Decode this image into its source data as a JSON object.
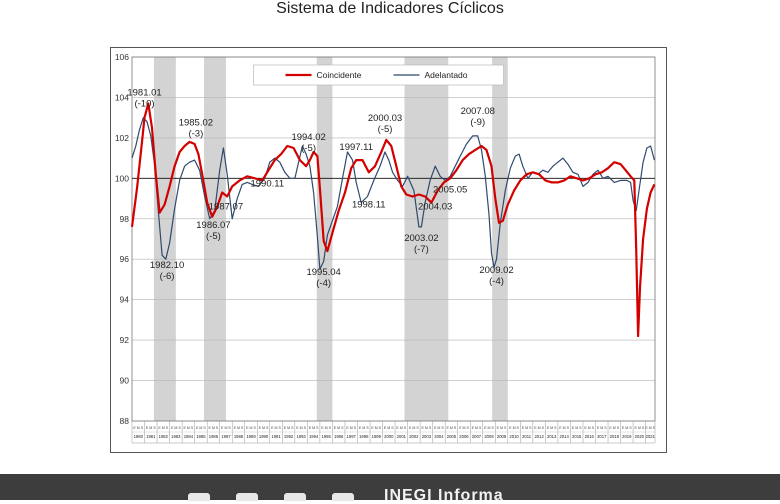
{
  "page": {
    "title": "Sistema de Indicadores Cíclicos"
  },
  "colors": {
    "coincidente": "#d40000",
    "adelantado": "#2f4a6e",
    "shade": "#d3d3d3",
    "footer": "#3d3d3d"
  },
  "footer": {
    "icons": [
      "facebook-icon",
      "instagram-icon",
      "twitter-icon",
      "youtube-icon"
    ],
    "brand": "INEGI Informa"
  },
  "chart_data": {
    "type": "line",
    "title": "",
    "xlabel": "",
    "ylabel": "",
    "ylim": [
      88,
      106
    ],
    "y_ticks": [
      88,
      90,
      92,
      94,
      96,
      98,
      100,
      102,
      104,
      106
    ],
    "reference_line": 100,
    "x_range": [
      1980.0,
      2021.75
    ],
    "year_labels": [
      "1980",
      "1981",
      "1982",
      "1983",
      "1984",
      "1985",
      "1986",
      "1987",
      "1988",
      "1989",
      "1990",
      "1991",
      "1992",
      "1993",
      "1994",
      "1995",
      "1996",
      "1997",
      "1998",
      "1999",
      "2000",
      "2001",
      "2002",
      "2003",
      "2004",
      "2005",
      "2006",
      "2007",
      "2008",
      "2009",
      "2010",
      "2011",
      "2012",
      "2013",
      "2014",
      "2015",
      "2016",
      "2017",
      "2018",
      "2019",
      "2020",
      "2021"
    ],
    "month_labels": "E M S",
    "grid": true,
    "legend": {
      "placement": "top-center",
      "entries": [
        "Coincidente",
        "Adelantado"
      ]
    },
    "recession_shading": [
      [
        1981.75,
        1983.5
      ],
      [
        1985.75,
        1987.5
      ],
      [
        1994.75,
        1996.0
      ],
      [
        2001.75,
        2005.25
      ],
      [
        2008.75,
        2010.0
      ]
    ],
    "series": [
      {
        "name": "Coincidente",
        "points": [
          [
            1980.0,
            97.6
          ],
          [
            1980.4,
            99.5
          ],
          [
            1980.8,
            101.8
          ],
          [
            1981.0,
            103.0
          ],
          [
            1981.3,
            103.7
          ],
          [
            1981.6,
            102.5
          ],
          [
            1981.9,
            100.2
          ],
          [
            1982.2,
            98.3
          ],
          [
            1982.6,
            98.7
          ],
          [
            1983.0,
            99.6
          ],
          [
            1983.4,
            100.6
          ],
          [
            1983.8,
            101.3
          ],
          [
            1984.2,
            101.6
          ],
          [
            1984.6,
            101.8
          ],
          [
            1985.0,
            101.7
          ],
          [
            1985.3,
            101.2
          ],
          [
            1985.6,
            100.2
          ],
          [
            1986.0,
            98.8
          ],
          [
            1986.4,
            98.1
          ],
          [
            1986.8,
            98.6
          ],
          [
            1987.2,
            99.3
          ],
          [
            1987.6,
            99.1
          ],
          [
            1988.0,
            99.6
          ],
          [
            1988.6,
            99.9
          ],
          [
            1989.2,
            100.1
          ],
          [
            1989.8,
            100.0
          ],
          [
            1990.4,
            99.9
          ],
          [
            1990.9,
            100.4
          ],
          [
            1991.4,
            100.9
          ],
          [
            1991.9,
            101.2
          ],
          [
            1992.4,
            101.6
          ],
          [
            1992.9,
            101.5
          ],
          [
            1993.4,
            100.9
          ],
          [
            1993.9,
            100.6
          ],
          [
            1994.2,
            100.9
          ],
          [
            1994.5,
            101.3
          ],
          [
            1994.8,
            101.1
          ],
          [
            1995.0,
            99.5
          ],
          [
            1995.3,
            96.9
          ],
          [
            1995.6,
            96.4
          ],
          [
            1996.0,
            97.3
          ],
          [
            1996.5,
            98.4
          ],
          [
            1997.0,
            99.3
          ],
          [
            1997.5,
            100.5
          ],
          [
            1997.9,
            100.9
          ],
          [
            1998.4,
            100.9
          ],
          [
            1998.9,
            100.3
          ],
          [
            1999.4,
            100.6
          ],
          [
            1999.9,
            101.3
          ],
          [
            2000.3,
            101.9
          ],
          [
            2000.7,
            101.6
          ],
          [
            2001.1,
            100.6
          ],
          [
            2001.5,
            99.6
          ],
          [
            2001.9,
            99.2
          ],
          [
            2002.4,
            99.1
          ],
          [
            2002.9,
            99.2
          ],
          [
            2003.4,
            99.1
          ],
          [
            2003.9,
            98.8
          ],
          [
            2004.4,
            99.4
          ],
          [
            2004.9,
            99.8
          ],
          [
            2005.4,
            100.0
          ],
          [
            2005.9,
            100.4
          ],
          [
            2006.4,
            100.9
          ],
          [
            2006.9,
            101.2
          ],
          [
            2007.4,
            101.4
          ],
          [
            2007.9,
            101.6
          ],
          [
            2008.3,
            101.4
          ],
          [
            2008.7,
            100.6
          ],
          [
            2009.0,
            99.0
          ],
          [
            2009.3,
            97.8
          ],
          [
            2009.6,
            97.9
          ],
          [
            2010.0,
            98.7
          ],
          [
            2010.5,
            99.4
          ],
          [
            2011.0,
            99.9
          ],
          [
            2011.5,
            100.2
          ],
          [
            2012.0,
            100.3
          ],
          [
            2012.5,
            100.2
          ],
          [
            2013.0,
            99.9
          ],
          [
            2013.5,
            99.8
          ],
          [
            2014.0,
            99.8
          ],
          [
            2014.5,
            99.9
          ],
          [
            2015.0,
            100.1
          ],
          [
            2015.5,
            100.0
          ],
          [
            2016.0,
            99.9
          ],
          [
            2016.5,
            100.0
          ],
          [
            2017.0,
            100.2
          ],
          [
            2017.5,
            100.3
          ],
          [
            2018.0,
            100.5
          ],
          [
            2018.5,
            100.8
          ],
          [
            2019.0,
            100.7
          ],
          [
            2019.4,
            100.4
          ],
          [
            2019.8,
            100.1
          ],
          [
            2020.1,
            99.9
          ],
          [
            2020.25,
            96.5
          ],
          [
            2020.4,
            92.2
          ],
          [
            2020.55,
            94.6
          ],
          [
            2020.8,
            97.0
          ],
          [
            2021.1,
            98.5
          ],
          [
            2021.4,
            99.3
          ],
          [
            2021.7,
            99.7
          ]
        ]
      },
      {
        "name": "Adelantado",
        "points": [
          [
            1980.0,
            101.0
          ],
          [
            1980.3,
            101.6
          ],
          [
            1980.6,
            102.4
          ],
          [
            1980.9,
            103.0
          ],
          [
            1981.2,
            102.8
          ],
          [
            1981.5,
            102.1
          ],
          [
            1981.8,
            100.7
          ],
          [
            1982.1,
            98.4
          ],
          [
            1982.4,
            96.2
          ],
          [
            1982.7,
            96.0
          ],
          [
            1983.0,
            96.8
          ],
          [
            1983.4,
            98.5
          ],
          [
            1983.8,
            99.9
          ],
          [
            1984.2,
            100.6
          ],
          [
            1984.6,
            100.8
          ],
          [
            1985.0,
            100.9
          ],
          [
            1985.4,
            100.4
          ],
          [
            1985.8,
            99.1
          ],
          [
            1986.2,
            98.0
          ],
          [
            1986.6,
            98.4
          ],
          [
            1987.0,
            100.4
          ],
          [
            1987.3,
            101.5
          ],
          [
            1987.6,
            100.2
          ],
          [
            1988.0,
            98.0
          ],
          [
            1988.4,
            99.0
          ],
          [
            1988.8,
            99.7
          ],
          [
            1989.2,
            99.8
          ],
          [
            1989.6,
            99.7
          ],
          [
            1990.1,
            99.6
          ],
          [
            1990.6,
            100.0
          ],
          [
            1991.0,
            100.8
          ],
          [
            1991.4,
            101.0
          ],
          [
            1991.8,
            100.8
          ],
          [
            1992.2,
            100.3
          ],
          [
            1992.6,
            100.0
          ],
          [
            1993.0,
            100.0
          ],
          [
            1993.3,
            100.8
          ],
          [
            1993.6,
            101.6
          ],
          [
            1993.9,
            101.2
          ],
          [
            1994.2,
            100.6
          ],
          [
            1994.5,
            99.3
          ],
          [
            1994.8,
            97.1
          ],
          [
            1995.0,
            95.5
          ],
          [
            1995.3,
            95.9
          ],
          [
            1995.6,
            97.2
          ],
          [
            1996.0,
            97.9
          ],
          [
            1996.4,
            98.6
          ],
          [
            1996.8,
            100.0
          ],
          [
            1997.2,
            101.3
          ],
          [
            1997.6,
            100.9
          ],
          [
            1997.9,
            99.8
          ],
          [
            1998.3,
            98.8
          ],
          [
            1998.8,
            99.1
          ],
          [
            1999.3,
            99.9
          ],
          [
            1999.8,
            100.6
          ],
          [
            2000.2,
            101.3
          ],
          [
            2000.5,
            100.9
          ],
          [
            2000.8,
            100.3
          ],
          [
            2001.2,
            99.9
          ],
          [
            2001.6,
            99.6
          ],
          [
            2002.0,
            100.1
          ],
          [
            2002.5,
            99.4
          ],
          [
            2002.9,
            97.6
          ],
          [
            2003.1,
            97.6
          ],
          [
            2003.4,
            98.8
          ],
          [
            2003.8,
            99.9
          ],
          [
            2004.2,
            100.6
          ],
          [
            2004.6,
            100.1
          ],
          [
            2005.0,
            99.9
          ],
          [
            2005.4,
            100.1
          ],
          [
            2005.8,
            100.6
          ],
          [
            2006.2,
            101.1
          ],
          [
            2006.7,
            101.7
          ],
          [
            2007.2,
            102.1
          ],
          [
            2007.6,
            102.1
          ],
          [
            2007.9,
            101.4
          ],
          [
            2008.2,
            100.1
          ],
          [
            2008.5,
            98.2
          ],
          [
            2008.7,
            96.3
          ],
          [
            2008.9,
            95.6
          ],
          [
            2009.1,
            96.0
          ],
          [
            2009.4,
            97.8
          ],
          [
            2009.8,
            99.4
          ],
          [
            2010.2,
            100.5
          ],
          [
            2010.6,
            101.1
          ],
          [
            2010.9,
            101.2
          ],
          [
            2011.2,
            100.6
          ],
          [
            2011.6,
            100.0
          ],
          [
            2012.0,
            100.3
          ],
          [
            2012.4,
            100.2
          ],
          [
            2012.8,
            100.4
          ],
          [
            2013.2,
            100.3
          ],
          [
            2013.6,
            100.6
          ],
          [
            2014.0,
            100.8
          ],
          [
            2014.4,
            101.0
          ],
          [
            2014.8,
            100.7
          ],
          [
            2015.2,
            100.3
          ],
          [
            2015.6,
            100.2
          ],
          [
            2016.0,
            99.6
          ],
          [
            2016.4,
            99.8
          ],
          [
            2016.8,
            100.2
          ],
          [
            2017.2,
            100.4
          ],
          [
            2017.6,
            100.0
          ],
          [
            2018.0,
            100.1
          ],
          [
            2018.5,
            99.8
          ],
          [
            2019.0,
            99.9
          ],
          [
            2019.5,
            99.9
          ],
          [
            2019.8,
            99.8
          ],
          [
            2020.0,
            98.9
          ],
          [
            2020.25,
            98.4
          ],
          [
            2020.5,
            99.5
          ],
          [
            2020.8,
            100.8
          ],
          [
            2021.1,
            101.5
          ],
          [
            2021.4,
            101.6
          ],
          [
            2021.7,
            100.9
          ]
        ]
      }
    ],
    "annotations": [
      {
        "date": 1981.0,
        "label": "1981.01",
        "lag": "(-10)"
      },
      {
        "date": 1982.8,
        "label": "1982.10",
        "lag": "(-6)"
      },
      {
        "date": 1985.1,
        "label": "1985.02",
        "lag": "(-3)"
      },
      {
        "date": 1986.5,
        "label": "1986.07",
        "lag": "(-5)"
      },
      {
        "date": 1987.5,
        "label": "1987.07",
        "lag": ""
      },
      {
        "date": 1990.8,
        "label": "1990.11",
        "lag": ""
      },
      {
        "date": 1994.1,
        "label": "1994.02",
        "lag": "(-5)"
      },
      {
        "date": 1995.3,
        "label": "1995.04",
        "lag": "(-4)"
      },
      {
        "date": 1997.9,
        "label": "1997.11",
        "lag": ""
      },
      {
        "date": 1998.9,
        "label": "1998.11",
        "lag": ""
      },
      {
        "date": 2000.2,
        "label": "2000.03",
        "lag": "(-5)"
      },
      {
        "date": 2003.1,
        "label": "2003.02",
        "lag": "(-7)"
      },
      {
        "date": 2004.2,
        "label": "2004.03",
        "lag": ""
      },
      {
        "date": 2005.4,
        "label": "2005.05",
        "lag": ""
      },
      {
        "date": 2007.6,
        "label": "2007.08",
        "lag": "(-9)"
      },
      {
        "date": 2009.1,
        "label": "2009.02",
        "lag": "(-4)"
      }
    ]
  }
}
